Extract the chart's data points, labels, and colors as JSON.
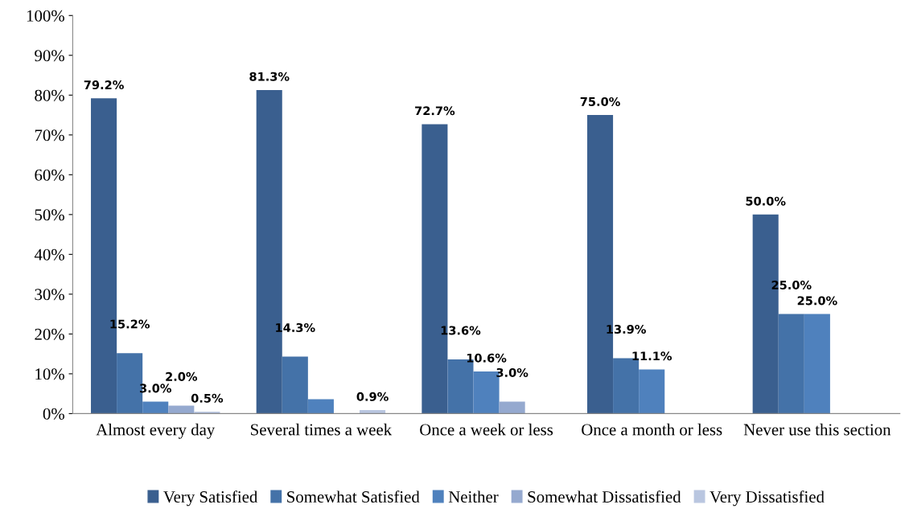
{
  "chart_data": {
    "type": "bar",
    "categories": [
      "Almost every day",
      "Several times a week",
      "Once a week or less",
      "Once a month or less",
      "Never use this section"
    ],
    "series": [
      {
        "name": "Very Satisfied",
        "color": "#3a5f8f",
        "values": [
          79.2,
          81.3,
          72.7,
          75.0,
          50.0
        ],
        "value_labels": [
          "79.2%",
          "81.3%",
          "72.7%",
          "75.0%",
          "50.0%"
        ]
      },
      {
        "name": "Somewhat Satisfied",
        "color": "#4472a8",
        "values": [
          15.2,
          14.3,
          13.6,
          13.9,
          25.0
        ],
        "value_labels": [
          "15.2%",
          "14.3%",
          "13.6%",
          "13.9%",
          "25.0%"
        ]
      },
      {
        "name": "Neither",
        "color": "#4f81bd",
        "values": [
          3.0,
          3.6,
          10.6,
          11.1,
          25.0
        ],
        "value_labels": [
          "3.0%",
          null,
          "10.6%",
          "11.1%",
          "25.0%"
        ]
      },
      {
        "name": "Somewhat Dissatisfied",
        "color": "#95a9cf",
        "values": [
          2.0,
          null,
          3.0,
          null,
          null
        ],
        "value_labels": [
          "2.0%",
          null,
          "3.0%",
          null,
          null
        ]
      },
      {
        "name": "Very Dissatisfied",
        "color": "#b9c6e0",
        "values": [
          0.5,
          0.9,
          null,
          null,
          null
        ],
        "value_labels": [
          "0.5%",
          "0.9%",
          null,
          null,
          null
        ]
      }
    ],
    "ylim": [
      0,
      100
    ],
    "yticks": [
      {
        "value": 0,
        "label": "0%"
      },
      {
        "value": 10,
        "label": "10%"
      },
      {
        "value": 20,
        "label": "20%"
      },
      {
        "value": 30,
        "label": "30%"
      },
      {
        "value": 40,
        "label": "40%"
      },
      {
        "value": 50,
        "label": "50%"
      },
      {
        "value": 60,
        "label": "60%"
      },
      {
        "value": 70,
        "label": "70%"
      },
      {
        "value": 80,
        "label": "80%"
      },
      {
        "value": 90,
        "label": "90%"
      },
      {
        "value": 100,
        "label": "100%"
      }
    ],
    "grid": false,
    "legend": "bottom"
  }
}
